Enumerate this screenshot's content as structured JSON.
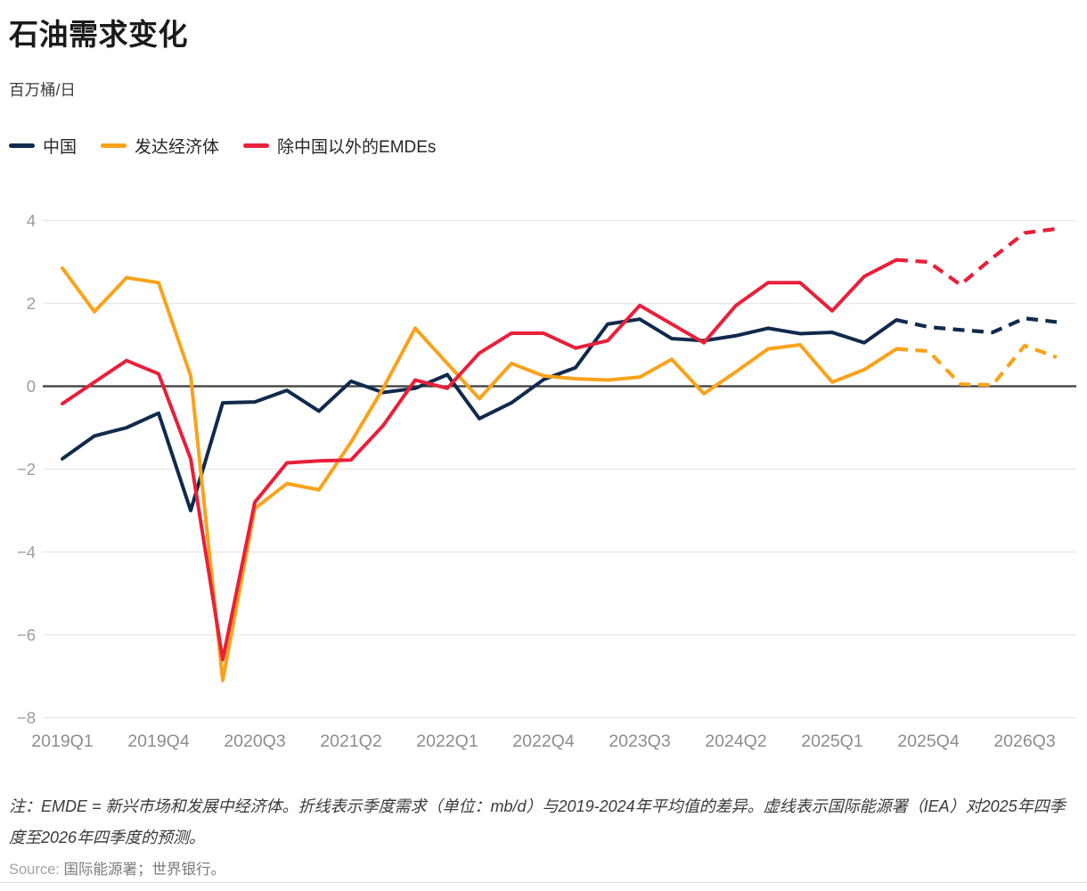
{
  "header": {
    "title": "石油需求变化",
    "subtitle": "百万桶/日"
  },
  "legend": [
    {
      "label": "中国",
      "color": "#102a4d"
    },
    {
      "label": "发达经济体",
      "color": "#f9a21b"
    },
    {
      "label": "除中国以外的EMDEs",
      "color": "#e8203a"
    }
  ],
  "footer": {
    "note": "注：EMDE = 新兴市场和发展中经济体。折线表示季度需求（单位：mb/d）与2019-2024年平均值的差异。虚线表示国际能源署（IEA）对2025年四季度至2026年四季度的预测。",
    "source_label": "Source:",
    "source_text": "国际能源署；世界银行。"
  },
  "chart_data": {
    "type": "line",
    "title": "石油需求变化",
    "ylabel": "百万桶/日",
    "x": [
      "2019Q1",
      "2019Q2",
      "2019Q3",
      "2019Q4",
      "2020Q1",
      "2020Q2",
      "2020Q3",
      "2020Q4",
      "2021Q1",
      "2021Q2",
      "2021Q3",
      "2021Q4",
      "2022Q1",
      "2022Q2",
      "2022Q3",
      "2022Q4",
      "2023Q1",
      "2023Q2",
      "2023Q3",
      "2023Q4",
      "2024Q1",
      "2024Q2",
      "2024Q3",
      "2024Q4",
      "2025Q1",
      "2025Q2",
      "2025Q3",
      "2025Q4",
      "2026Q1",
      "2026Q2",
      "2026Q3",
      "2026Q4"
    ],
    "x_ticks": [
      "2019Q1",
      "2019Q4",
      "2020Q3",
      "2021Q2",
      "2022Q1",
      "2022Q4",
      "2023Q3",
      "2024Q2",
      "2025Q1",
      "2025Q4",
      "2026Q3"
    ],
    "y_ticks": [
      4,
      2,
      0,
      -2,
      -4,
      -6,
      -8
    ],
    "ylim": [
      -8,
      4
    ],
    "grid": "horizontal",
    "zero_line": true,
    "legend_position": "top",
    "forecast_start_index": 26,
    "forecast_note": "虚线为2025Q4至2026Q4的IEA预测",
    "series": [
      {
        "name": "中国",
        "color": "#102a4d",
        "values": [
          -1.75,
          -1.2,
          -1.0,
          -0.65,
          -3.0,
          -0.4,
          -0.38,
          -0.1,
          -0.6,
          0.12,
          -0.15,
          -0.05,
          0.28,
          -0.78,
          -0.4,
          0.16,
          0.45,
          1.5,
          1.62,
          1.15,
          1.1,
          1.22,
          1.4,
          1.27,
          1.3,
          1.05,
          1.6,
          1.43,
          1.36,
          1.3,
          1.64,
          1.55
        ]
      },
      {
        "name": "发达经济体",
        "color": "#f9a21b",
        "values": [
          2.85,
          1.8,
          2.62,
          2.5,
          0.25,
          -7.1,
          -2.95,
          -2.35,
          -2.5,
          -1.35,
          -0.05,
          1.4,
          0.55,
          -0.3,
          0.55,
          0.25,
          0.18,
          0.15,
          0.22,
          0.65,
          -0.18,
          0.35,
          0.9,
          1.0,
          0.1,
          0.4,
          0.9,
          0.85,
          0.05,
          0.03,
          0.98,
          0.7
        ]
      },
      {
        "name": "除中国以外的EMDEs",
        "color": "#e8203a",
        "values": [
          -0.42,
          0.1,
          0.62,
          0.3,
          -1.75,
          -6.6,
          -2.8,
          -1.85,
          -1.8,
          -1.78,
          -0.95,
          0.15,
          -0.05,
          0.8,
          1.28,
          1.28,
          0.92,
          1.1,
          1.95,
          1.5,
          1.05,
          1.95,
          2.5,
          2.5,
          1.82,
          2.65,
          3.05,
          3.0,
          2.45,
          3.1,
          3.7,
          3.8
        ]
      }
    ]
  }
}
